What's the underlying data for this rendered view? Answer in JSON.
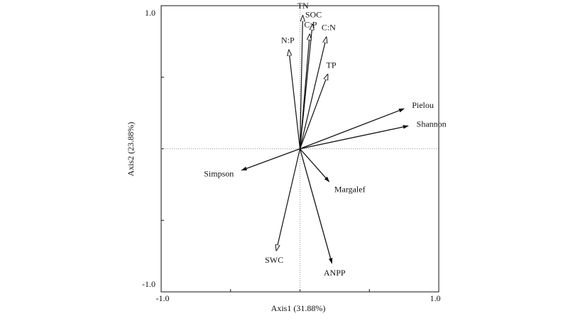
{
  "chart_data": {
    "type": "scatter",
    "subtype": "rda-biplot",
    "title": "",
    "xlabel": "Axis1 (31.88%)",
    "ylabel": "Axis2 (23.88%)",
    "xlim": [
      -1.0,
      1.0
    ],
    "ylim": [
      -1.0,
      1.0
    ],
    "x_tick_labels": [
      "-1.0",
      "1.0"
    ],
    "y_tick_labels": [
      "1.0",
      "-1.0"
    ],
    "grid": false,
    "zero_lines": true,
    "environmental_vectors": [
      {
        "name": "TN",
        "x": 0.02,
        "y": 0.93
      },
      {
        "name": "SOC",
        "x": 0.09,
        "y": 0.87
      },
      {
        "name": "C:P",
        "x": 0.07,
        "y": 0.8
      },
      {
        "name": "C:N",
        "x": 0.19,
        "y": 0.78
      },
      {
        "name": "N:P",
        "x": -0.08,
        "y": 0.69
      },
      {
        "name": "TP",
        "x": 0.2,
        "y": 0.52
      },
      {
        "name": "SWC",
        "x": -0.17,
        "y": -0.71
      }
    ],
    "response_vectors": [
      {
        "name": "Pielou",
        "x": 0.75,
        "y": 0.28
      },
      {
        "name": "Shannon",
        "x": 0.78,
        "y": 0.16
      },
      {
        "name": "Simpson",
        "x": -0.42,
        "y": -0.15
      },
      {
        "name": "Margalef",
        "x": 0.21,
        "y": -0.23
      },
      {
        "name": "ANPP",
        "x": 0.23,
        "y": -0.8
      }
    ],
    "vector_colors": {
      "environmental": "#111111",
      "response": "#111111",
      "zero_line": "#777777"
    }
  }
}
